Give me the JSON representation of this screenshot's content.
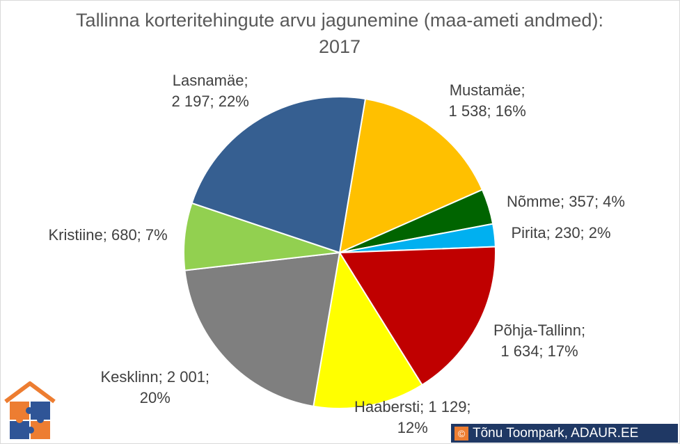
{
  "chart_data": {
    "type": "pie",
    "title": "Tallinna korteritehingute arvu jagunemine (maa-ameti andmed): 2017",
    "slices": [
      {
        "name": "Mustamäe",
        "value": 1538,
        "percent": "16%",
        "color": "#ffc000",
        "label_lines": [
          "Mustamäe;",
          "1 538; 16%"
        ]
      },
      {
        "name": "Nõmme",
        "value": 357,
        "percent": "4%",
        "color": "#006400",
        "label_lines": [
          "Nõmme; 357; 4%"
        ]
      },
      {
        "name": "Pirita",
        "value": 230,
        "percent": "2%",
        "color": "#00b0f0",
        "label_lines": [
          "Pirita; 230; 2%"
        ]
      },
      {
        "name": "Põhja-Tallinn",
        "value": 1634,
        "percent": "17%",
        "color": "#c00000",
        "label_lines": [
          "Põhja-Tallinn;",
          "1 634; 17%"
        ]
      },
      {
        "name": "Haabersti",
        "value": 1129,
        "percent": "12%",
        "color": "#ffff00",
        "label_lines": [
          "Haabersti; 1 129;",
          "12%"
        ]
      },
      {
        "name": "Kesklinn",
        "value": 2001,
        "percent": "20%",
        "color": "#7f7f7f",
        "label_lines": [
          "Kesklinn; 2 001;",
          "20%"
        ]
      },
      {
        "name": "Kristiine",
        "value": 680,
        "percent": "7%",
        "color": "#92d050",
        "label_lines": [
          "Kristiine; 680; 7%"
        ]
      },
      {
        "name": "Lasnamäe",
        "value": 2197,
        "percent": "22%",
        "color": "#365f91",
        "label_lines": [
          "Lasnamäe;",
          "2 197; 22%"
        ]
      }
    ]
  },
  "copyright": {
    "symbol": "©",
    "text": "Tõnu Toompark, ADAUR.EE"
  }
}
